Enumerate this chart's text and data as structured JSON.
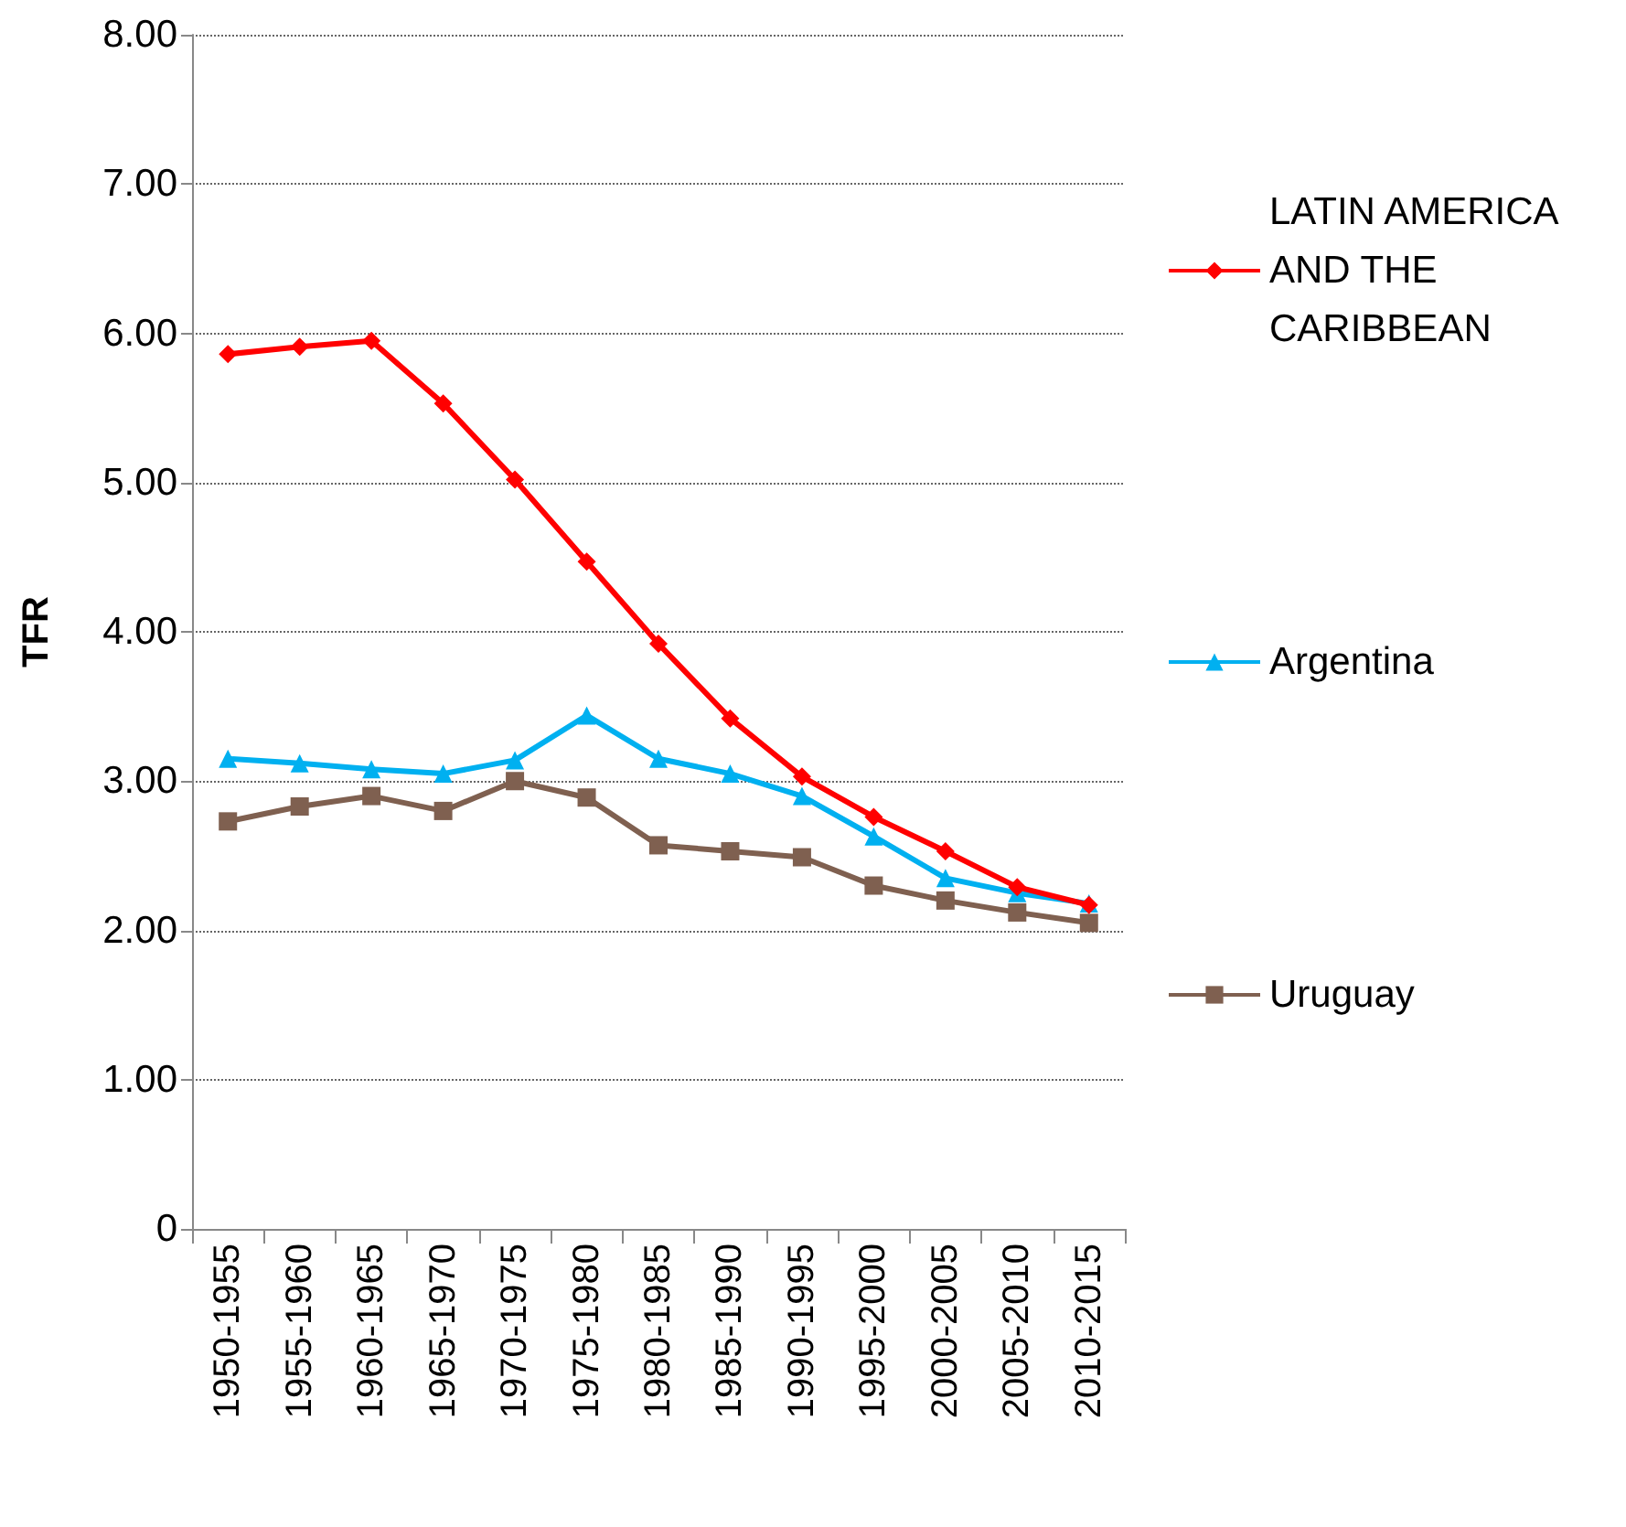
{
  "chart_data": {
    "type": "line",
    "ylabel": "TFR",
    "categories": [
      "1950-1955",
      "1955-1960",
      "1960-1965",
      "1965-1970",
      "1970-1975",
      "1975-1980",
      "1980-1985",
      "1985-1990",
      "1990-1995",
      "1995-2000",
      "2000-2005",
      "2005-2010",
      "2010-2015"
    ],
    "series": [
      {
        "name": "LATIN AMERICA AND THE CARIBBEAN",
        "color": "#ff0000",
        "marker": "diamond",
        "values": [
          5.86,
          5.91,
          5.95,
          5.53,
          5.02,
          4.47,
          3.92,
          3.42,
          3.03,
          2.76,
          2.53,
          2.29,
          2.17
        ]
      },
      {
        "name": "Argentina",
        "color": "#00b0f0",
        "marker": "triangle",
        "values": [
          3.15,
          3.12,
          3.08,
          3.05,
          3.14,
          3.44,
          3.15,
          3.05,
          2.9,
          2.63,
          2.35,
          2.25,
          2.18
        ]
      },
      {
        "name": "Uruguay",
        "color": "#7f6050",
        "marker": "square",
        "values": [
          2.73,
          2.83,
          2.9,
          2.8,
          3.0,
          2.89,
          2.57,
          2.53,
          2.49,
          2.3,
          2.2,
          2.12,
          2.05
        ]
      }
    ],
    "ylim": [
      0,
      8
    ],
    "yticks": [
      {
        "value": 0,
        "label": "0"
      },
      {
        "value": 1,
        "label": "1.00"
      },
      {
        "value": 2,
        "label": "2.00"
      },
      {
        "value": 3,
        "label": "3.00"
      },
      {
        "value": 4,
        "label": "4.00"
      },
      {
        "value": 5,
        "label": "5.00"
      },
      {
        "value": 6,
        "label": "6.00"
      },
      {
        "value": 7,
        "label": "7.00"
      },
      {
        "value": 8,
        "label": "8.00"
      }
    ],
    "grid": "y",
    "legend": "right"
  }
}
